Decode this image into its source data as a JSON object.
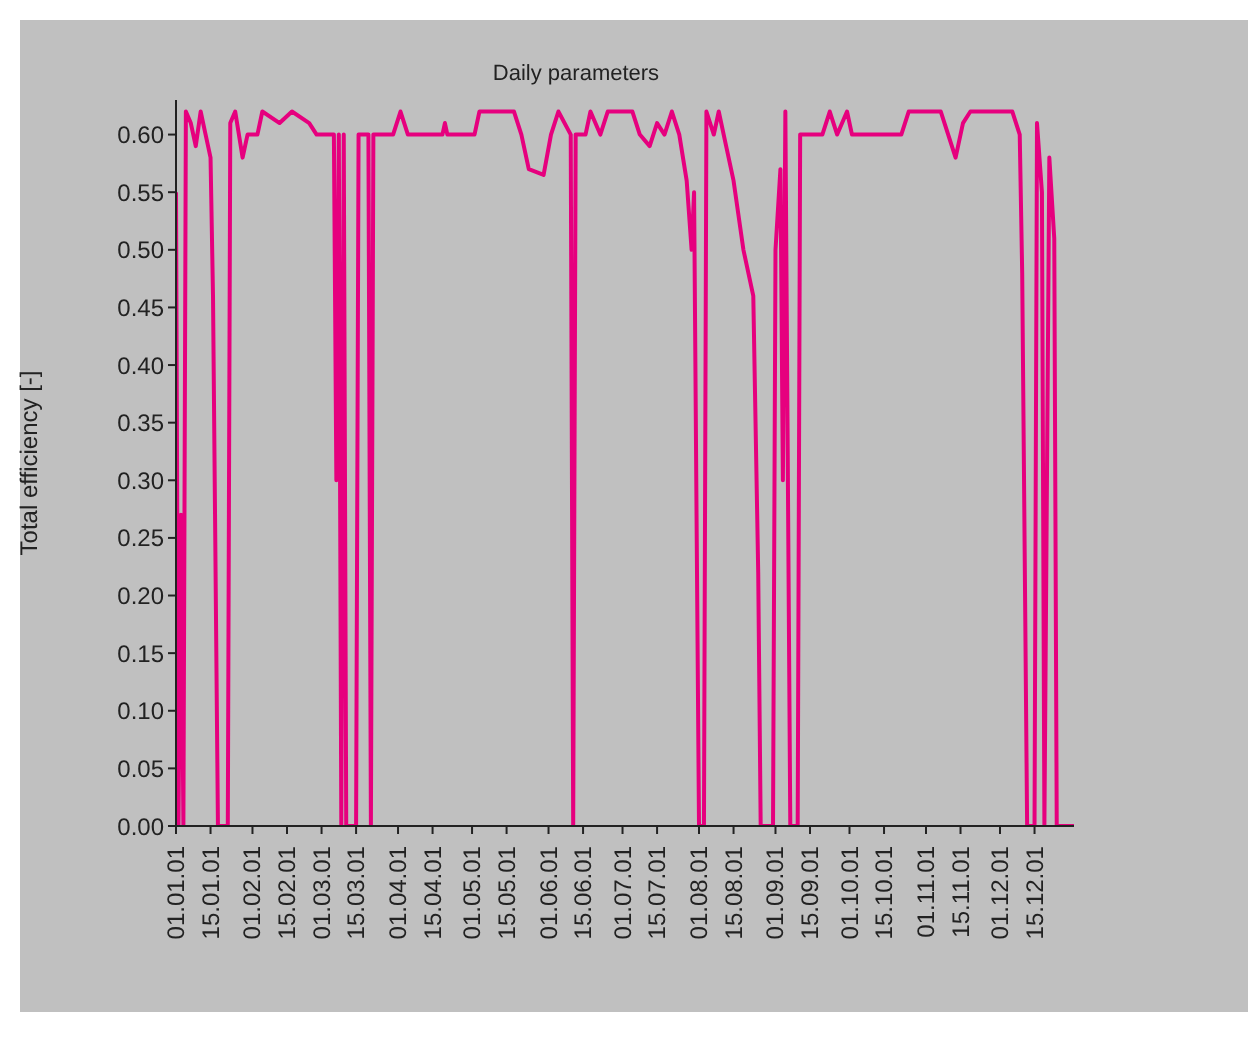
{
  "chart_data": {
    "type": "line",
    "title": "Daily parameters",
    "ylabel": "Total efficiency [-]",
    "x": [
      "--01-01",
      "--01-02",
      "--01-03",
      "--01-04",
      "--01-05",
      "--01-07",
      "--01-09",
      "--01-11",
      "--01-13",
      "--01-15",
      "--01-16",
      "--01-18",
      "--01-22",
      "--01-23",
      "--01-25",
      "--01-28",
      "--01-30",
      "--02-03",
      "--02-05",
      "--02-12",
      "--02-17",
      "--02-24",
      "--02-27",
      "--03-06",
      "--03-07",
      "--03-08",
      "--03-09",
      "--03-10",
      "--03-11",
      "--03-15",
      "--03-16",
      "--03-20",
      "--03-21",
      "--03-22",
      "--03-30",
      "--04-02",
      "--04-05",
      "--04-19",
      "--04-20",
      "--04-21",
      "--05-02",
      "--05-04",
      "--05-18",
      "--05-21",
      "--05-24",
      "--05-30",
      "--06-02",
      "--06-05",
      "--06-10",
      "--06-11",
      "--06-12",
      "--06-16",
      "--06-18",
      "--06-22",
      "--06-25",
      "--07-05",
      "--07-08",
      "--07-12",
      "--07-15",
      "--07-18",
      "--07-21",
      "--07-24",
      "--07-27",
      "--07-29",
      "--07-30",
      "--07-31",
      "--08-01",
      "--08-03",
      "--08-04",
      "--08-07",
      "--08-09",
      "--08-12",
      "--08-15",
      "--08-19",
      "--08-23",
      "--08-25",
      "--08-26",
      "--08-31",
      "--09-01",
      "--09-03",
      "--09-04",
      "--09-05",
      "--09-07",
      "--09-10",
      "--09-11",
      "--09-16",
      "--09-20",
      "--09-23",
      "--09-26",
      "--09-30",
      "--10-02",
      "--10-22",
      "--10-25",
      "--11-07",
      "--11-13",
      "--11-16",
      "--11-19",
      "--12-06",
      "--12-09",
      "--12-10",
      "--12-11",
      "--12-12",
      "--12-15",
      "--12-16",
      "--12-18",
      "--12-19",
      "--12-21",
      "--12-23",
      "--12-24",
      "--12-31"
    ],
    "series": [
      {
        "color": "#e6007e",
        "values": [
          0.55,
          0,
          0.27,
          0,
          0.62,
          0.61,
          0.59,
          0.62,
          0.6,
          0.58,
          0.46,
          0,
          0,
          0.61,
          0.62,
          0.58,
          0.6,
          0.6,
          0.62,
          0.61,
          0.62,
          0.61,
          0.6,
          0.6,
          0.3,
          0.6,
          0,
          0.6,
          0,
          0,
          0.6,
          0.6,
          0,
          0.6,
          0.6,
          0.62,
          0.6,
          0.6,
          0.61,
          0.6,
          0.6,
          0.62,
          0.62,
          0.6,
          0.57,
          0.565,
          0.6,
          0.62,
          0.6,
          0,
          0.6,
          0.6,
          0.62,
          0.6,
          0.62,
          0.62,
          0.6,
          0.59,
          0.61,
          0.6,
          0.62,
          0.6,
          0.56,
          0.5,
          0.55,
          0.27,
          0,
          0,
          0.62,
          0.6,
          0.62,
          0.59,
          0.56,
          0.5,
          0.46,
          0.22,
          0,
          0,
          0.5,
          0.57,
          0.3,
          0.62,
          0,
          0,
          0.6,
          0.6,
          0.6,
          0.62,
          0.6,
          0.62,
          0.6,
          0.6,
          0.62,
          0.62,
          0.58,
          0.61,
          0.62,
          0.62,
          0.6,
          0.48,
          0.24,
          0,
          0,
          0.61,
          0.55,
          0,
          0.58,
          0.51,
          0,
          0
        ]
      }
    ],
    "xlim": [
      "--01-01",
      "--12-31"
    ],
    "xticks": [
      {
        "value": "--01-01",
        "label": "01.01.01"
      },
      {
        "value": "--01-15",
        "label": "15.01.01"
      },
      {
        "value": "--02-01",
        "label": "01.02.01"
      },
      {
        "value": "--02-15",
        "label": "15.02.01"
      },
      {
        "value": "--03-01",
        "label": "01.03.01"
      },
      {
        "value": "--03-15",
        "label": "15.03.01"
      },
      {
        "value": "--04-01",
        "label": "01.04.01"
      },
      {
        "value": "--04-15",
        "label": "15.04.01"
      },
      {
        "value": "--05-01",
        "label": "01.05.01"
      },
      {
        "value": "--05-15",
        "label": "15.05.01"
      },
      {
        "value": "--06-01",
        "label": "01.06.01"
      },
      {
        "value": "--06-15",
        "label": "15.06.01"
      },
      {
        "value": "--07-01",
        "label": "01.07.01"
      },
      {
        "value": "--07-15",
        "label": "15.07.01"
      },
      {
        "value": "--08-01",
        "label": "01.08.01"
      },
      {
        "value": "--08-15",
        "label": "15.08.01"
      },
      {
        "value": "--09-01",
        "label": "01.09.01"
      },
      {
        "value": "--09-15",
        "label": "15.09.01"
      },
      {
        "value": "--10-01",
        "label": "01.10.01"
      },
      {
        "value": "--10-15",
        "label": "15.10.01"
      },
      {
        "value": "--11-01",
        "label": "01.11.01"
      },
      {
        "value": "--11-15",
        "label": "15.11.01"
      },
      {
        "value": "--12-01",
        "label": "01.12.01"
      },
      {
        "value": "--12-15",
        "label": "15.12.01"
      }
    ],
    "ylim": [
      0,
      0.63
    ],
    "yticks": [
      {
        "value": 0,
        "label": "0.00"
      },
      {
        "value": 0.05,
        "label": "0.05"
      },
      {
        "value": 0.1,
        "label": "0.10"
      },
      {
        "value": 0.15,
        "label": "0.15"
      },
      {
        "value": 0.2,
        "label": "0.20"
      },
      {
        "value": 0.25,
        "label": "0.25"
      },
      {
        "value": 0.3,
        "label": "0.30"
      },
      {
        "value": 0.35,
        "label": "0.35"
      },
      {
        "value": 0.4,
        "label": "0.40"
      },
      {
        "value": 0.45,
        "label": "0.45"
      },
      {
        "value": 0.5,
        "label": "0.50"
      },
      {
        "value": 0.55,
        "label": "0.55"
      },
      {
        "value": 0.6,
        "label": "0.60"
      }
    ],
    "grid": false,
    "marker": "none",
    "line_style": "solid"
  }
}
